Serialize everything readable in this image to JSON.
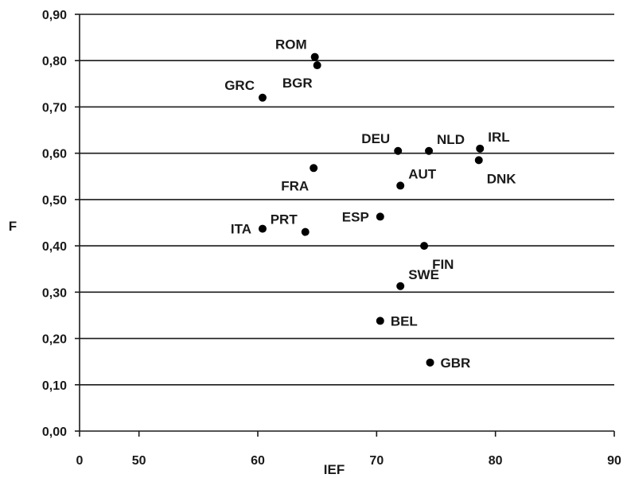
{
  "chart_data": {
    "type": "scatter",
    "xlabel": "IEF",
    "ylabel": "F",
    "xlim": [
      45,
      90
    ],
    "ylim": [
      0,
      0.9
    ],
    "x_ticks": [
      "0",
      "50",
      "60",
      "70",
      "80",
      "90"
    ],
    "x_tick_values": [
      null,
      50,
      60,
      70,
      80,
      90
    ],
    "y_ticks": [
      "0,00",
      "0,10",
      "0,20",
      "0,30",
      "0,40",
      "0,50",
      "0,60",
      "0,70",
      "0,80",
      "0,90"
    ],
    "y_tick_values": [
      0,
      0.1,
      0.2,
      0.3,
      0.4,
      0.5,
      0.6,
      0.7,
      0.8,
      0.9
    ],
    "grid": "horizontal",
    "marker_color": "#000000",
    "points": [
      {
        "label": "ROM",
        "x": 64.8,
        "y": 0.808,
        "label_pos": "upper-left"
      },
      {
        "label": "BGR",
        "x": 65.0,
        "y": 0.79,
        "label_pos": "lower-left"
      },
      {
        "label": "GRC",
        "x": 60.4,
        "y": 0.72,
        "label_pos": "upper-left"
      },
      {
        "label": "DEU",
        "x": 71.8,
        "y": 0.605,
        "label_pos": "upper-left"
      },
      {
        "label": "NLD",
        "x": 74.4,
        "y": 0.605,
        "label_pos": "upper-right"
      },
      {
        "label": "IRL",
        "x": 78.7,
        "y": 0.61,
        "label_pos": "upper-right"
      },
      {
        "label": "DNK",
        "x": 78.6,
        "y": 0.585,
        "label_pos": "lower-right"
      },
      {
        "label": "FRA",
        "x": 64.7,
        "y": 0.568,
        "label_pos": "lower-left"
      },
      {
        "label": "AUT",
        "x": 72.0,
        "y": 0.53,
        "label_pos": "upper-right"
      },
      {
        "label": "ESP",
        "x": 70.3,
        "y": 0.463,
        "label_pos": "left"
      },
      {
        "label": "PRT",
        "x": 64.0,
        "y": 0.43,
        "label_pos": "upper-left"
      },
      {
        "label": "ITA",
        "x": 60.4,
        "y": 0.437,
        "label_pos": "left"
      },
      {
        "label": "FIN",
        "x": 74.0,
        "y": 0.4,
        "label_pos": "lower-right"
      },
      {
        "label": "SWE",
        "x": 72.0,
        "y": 0.313,
        "label_pos": "upper-right"
      },
      {
        "label": "BEL",
        "x": 70.3,
        "y": 0.238,
        "label_pos": "right"
      },
      {
        "label": "GBR",
        "x": 74.5,
        "y": 0.148,
        "label_pos": "right"
      }
    ]
  }
}
